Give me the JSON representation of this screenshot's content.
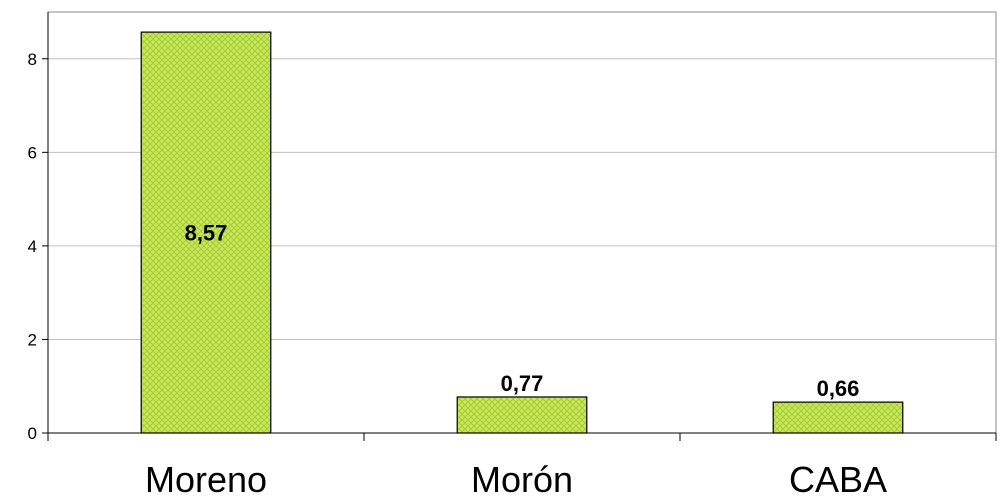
{
  "chart_data": {
    "type": "bar",
    "title": "",
    "xlabel": "",
    "ylabel": "",
    "categories": [
      "Moreno",
      "Morón",
      "CABA"
    ],
    "values": [
      8.57,
      0.77,
      0.66
    ],
    "value_labels": [
      "8,57",
      "0,77",
      "0,66"
    ],
    "ylim": [
      0,
      9
    ],
    "yticks": [
      0,
      2,
      4,
      6,
      8
    ],
    "ytick_labels": [
      "0",
      "2",
      "4",
      "6",
      "8"
    ],
    "grid": true,
    "legend": "none",
    "bar_color": "#c8e85a",
    "bar_pattern_color": "#a7cc3a",
    "bar_border_color": "#000000",
    "grid_color": "#c0c0c0"
  }
}
